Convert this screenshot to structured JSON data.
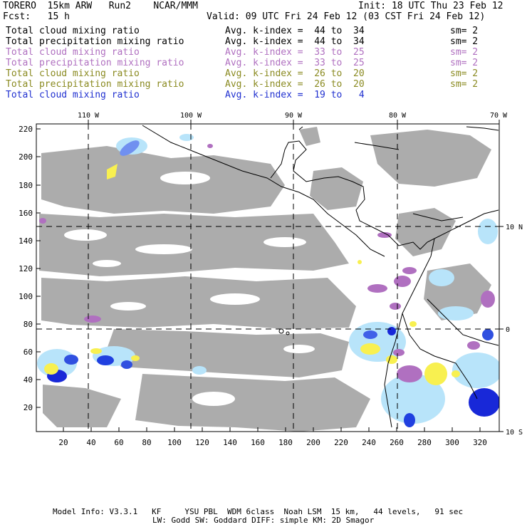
{
  "header": {
    "model": "TORERO  15km ARW   Run2    NCAR/MMM",
    "init": "Init: 18 UTC Thu 23 Feb 12",
    "fcst": "Fcst:   15 h",
    "valid": "Valid: 09 UTC Fri 24 Feb 12 (03 CST Fri 24 Feb 12)"
  },
  "fields": [
    {
      "name": "Total cloud mixing ratio",
      "kindex": "Avg. k-index =  44 to  34",
      "sm": "sm= 2",
      "color": "#000000"
    },
    {
      "name": "Total precipitation mixing ratio",
      "kindex": "Avg. k-index =  44 to  34",
      "sm": "sm= 2",
      "color": "#000000"
    },
    {
      "name": "Total cloud mixing ratio",
      "kindex": "Avg. k-index =  33 to  25",
      "sm": "sm= 2",
      "color": "#b070c0"
    },
    {
      "name": "Total precipitation mixing ratio",
      "kindex": "Avg. k-index =  33 to  25",
      "sm": "sm= 2",
      "color": "#b070c0"
    },
    {
      "name": "Total cloud mixing ratio",
      "kindex": "Avg. k-index =  26 to  20",
      "sm": "sm= 2",
      "color": "#8a8a20"
    },
    {
      "name": "Total precipitation mixing ratio",
      "kindex": "Avg. k-index =  26 to  20",
      "sm": "sm= 2",
      "color": "#8a8a20"
    },
    {
      "name": "Total cloud mixing ratio",
      "kindex": "Avg. k-index =  19 to   4",
      "sm": "",
      "color": "#2030d0"
    }
  ],
  "axes": {
    "top_lon": [
      "110 W",
      "100 W",
      "90 W",
      "80 W",
      "70 W"
    ],
    "right_lat": [
      "10 N",
      "0",
      "10 S"
    ],
    "left_y": [
      "220",
      "200",
      "180",
      "160",
      "140",
      "120",
      "100",
      "80",
      "60",
      "40",
      "20"
    ],
    "bottom_x": [
      "20",
      "40",
      "60",
      "80",
      "100",
      "120",
      "140",
      "160",
      "180",
      "200",
      "220",
      "240",
      "260",
      "280",
      "300",
      "320"
    ]
  },
  "footer": {
    "line1": "Model Info: V3.3.1   KF     YSU PBL  WDM 6class  Noah LSM  15 km,   44 levels,   91 sec",
    "line2": "LW: Godd SW: Goddard DIFF: simple KM: 2D Smagor"
  },
  "colors": {
    "gray_cloud": "#a8a8a8",
    "light_cloud": "#b8e4fa",
    "purple": "#b070c0",
    "yellow": "#f8f050",
    "blue": "#1828d8",
    "light_blue": "#7090f0"
  }
}
